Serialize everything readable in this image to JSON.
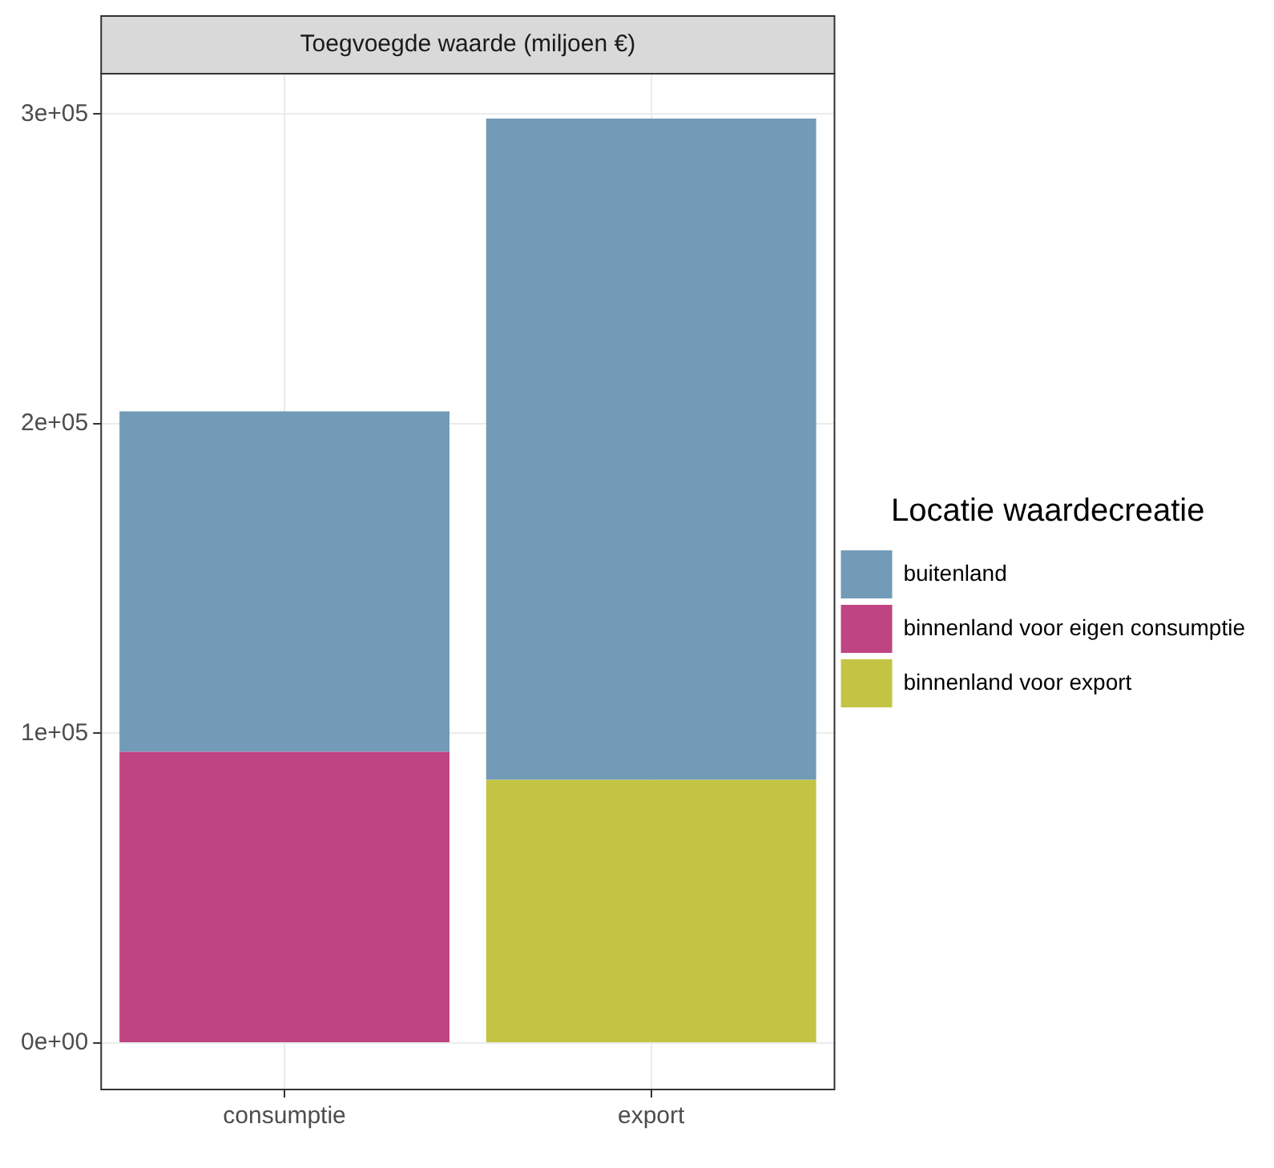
{
  "chart_data": {
    "type": "bar",
    "title": "Toegvoegde waarde (miljoen €)",
    "legend_title": "Locatie waardecreatie",
    "stacked": true,
    "categories": [
      "consumptie",
      "export"
    ],
    "series": [
      {
        "name": "binnenland voor export",
        "color": "#c3c443",
        "values": [
          null,
          85000
        ]
      },
      {
        "name": "binnenland voor eigen consumptie",
        "color": "#bf4582",
        "values": [
          94000,
          null
        ]
      },
      {
        "name": "buitenland",
        "color": "#729bb7",
        "values": [
          110000,
          213500
        ]
      }
    ],
    "ylim": [
      -15000,
      313000
    ],
    "yticks": [
      {
        "value": 0,
        "label": "0e+00"
      },
      {
        "value": 100000,
        "label": "1e+05"
      },
      {
        "value": 200000,
        "label": "2e+05"
      },
      {
        "value": 300000,
        "label": "3e+05"
      }
    ],
    "grid": true,
    "legend": "right"
  }
}
